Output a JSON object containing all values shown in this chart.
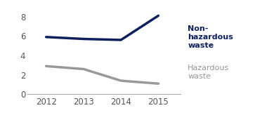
{
  "years": [
    2012,
    2013,
    2014,
    2015
  ],
  "non_hazardous": [
    5.9,
    5.7,
    5.6,
    8.1
  ],
  "hazardous": [
    2.9,
    2.6,
    1.4,
    1.1
  ],
  "non_hazardous_color": "#0d1f5c",
  "hazardous_color": "#999999",
  "non_hazardous_label": "Non-\nhazardous\nwaste",
  "hazardous_label": "Hazardous\nwaste",
  "ylim": [
    0,
    9
  ],
  "yticks": [
    0,
    2,
    4,
    6,
    8
  ],
  "xticks": [
    2012,
    2013,
    2014,
    2015
  ],
  "line_width": 2.5,
  "background_color": "#ffffff",
  "label_fontsize": 8.0,
  "tick_fontsize": 8.5
}
